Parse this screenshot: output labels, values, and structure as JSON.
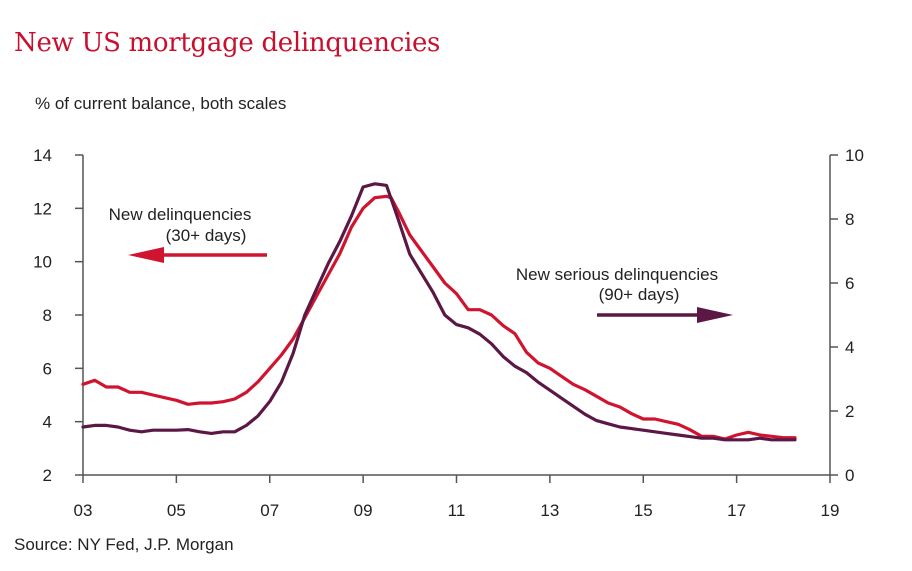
{
  "title": "New US mortgage delinquencies",
  "subtitle": "% of current balance, both scales",
  "source": "Source: NY Fed, J.P. Morgan",
  "colors": {
    "title": "#c8102e",
    "series_red": "#d0142f",
    "series_purple": "#5b1845",
    "axis": "#555555"
  },
  "chart_data": {
    "type": "line",
    "title": "New US mortgage delinquencies",
    "subtitle": "% of current balance, both scales",
    "xlabel": "",
    "x_ticks": [
      "03",
      "05",
      "07",
      "09",
      "11",
      "13",
      "15",
      "17",
      "19"
    ],
    "xlim": [
      2003,
      2019
    ],
    "left_axis": {
      "ylim": [
        2,
        14
      ],
      "ticks": [
        "2",
        "4",
        "6",
        "8",
        "10",
        "12",
        "14"
      ]
    },
    "right_axis": {
      "ylim": [
        0,
        10
      ],
      "ticks": [
        "0",
        "2",
        "4",
        "6",
        "8",
        "10"
      ]
    },
    "grid": false,
    "annotations": [
      {
        "lines": [
          "New delinquencies",
          "(30+ days)"
        ],
        "arrow": "left",
        "series": "30"
      },
      {
        "lines": [
          "New serious delinquencies",
          "(90+ days)"
        ],
        "arrow": "right",
        "series": "90"
      }
    ],
    "series": [
      {
        "id": "30",
        "axis": "left",
        "color": "#d0142f",
        "x": [
          2003.0,
          2003.25,
          2003.5,
          2003.75,
          2004.0,
          2004.25,
          2004.5,
          2004.75,
          2005.0,
          2005.25,
          2005.5,
          2005.75,
          2006.0,
          2006.25,
          2006.5,
          2006.75,
          2007.0,
          2007.25,
          2007.5,
          2007.75,
          2008.0,
          2008.25,
          2008.5,
          2008.75,
          2009.0,
          2009.25,
          2009.5,
          2009.6,
          2009.75,
          2010.0,
          2010.25,
          2010.5,
          2010.75,
          2011.0,
          2011.25,
          2011.5,
          2011.75,
          2012.0,
          2012.25,
          2012.5,
          2012.75,
          2013.0,
          2013.25,
          2013.5,
          2013.75,
          2014.0,
          2014.25,
          2014.5,
          2014.75,
          2015.0,
          2015.25,
          2015.5,
          2015.75,
          2016.0,
          2016.25,
          2016.5,
          2016.75,
          2017.0,
          2017.25,
          2017.5,
          2017.75,
          2018.0,
          2018.25
        ],
        "values": [
          5.4,
          5.55,
          5.3,
          5.3,
          5.1,
          5.1,
          5.0,
          4.9,
          4.8,
          4.65,
          4.7,
          4.7,
          4.75,
          4.85,
          5.1,
          5.5,
          6.0,
          6.5,
          7.1,
          7.9,
          8.7,
          9.5,
          10.3,
          11.3,
          12.0,
          12.4,
          12.45,
          12.4,
          11.9,
          11.0,
          10.4,
          9.8,
          9.2,
          8.8,
          8.2,
          8.2,
          8.0,
          7.6,
          7.3,
          6.6,
          6.2,
          6.0,
          5.7,
          5.4,
          5.2,
          4.95,
          4.7,
          4.55,
          4.3,
          4.1,
          4.1,
          4.0,
          3.9,
          3.7,
          3.45,
          3.45,
          3.35,
          3.5,
          3.6,
          3.5,
          3.45,
          3.4,
          3.4
        ]
      },
      {
        "id": "90",
        "axis": "right",
        "color": "#5b1845",
        "x": [
          2003.0,
          2003.25,
          2003.5,
          2003.75,
          2004.0,
          2004.25,
          2004.5,
          2004.75,
          2005.0,
          2005.25,
          2005.5,
          2005.75,
          2006.0,
          2006.25,
          2006.5,
          2006.75,
          2007.0,
          2007.25,
          2007.5,
          2007.75,
          2008.0,
          2008.25,
          2008.5,
          2008.75,
          2009.0,
          2009.25,
          2009.5,
          2009.75,
          2010.0,
          2010.25,
          2010.5,
          2010.75,
          2011.0,
          2011.25,
          2011.5,
          2011.75,
          2012.0,
          2012.25,
          2012.5,
          2012.75,
          2013.0,
          2013.25,
          2013.5,
          2013.75,
          2014.0,
          2014.25,
          2014.5,
          2014.75,
          2015.0,
          2015.25,
          2015.5,
          2015.75,
          2016.0,
          2016.25,
          2016.5,
          2016.75,
          2017.0,
          2017.25,
          2017.5,
          2017.75,
          2018.0,
          2018.25
        ],
        "values": [
          1.5,
          1.55,
          1.55,
          1.5,
          1.4,
          1.35,
          1.4,
          1.4,
          1.4,
          1.42,
          1.35,
          1.3,
          1.35,
          1.35,
          1.55,
          1.85,
          2.3,
          2.9,
          3.8,
          5.0,
          5.8,
          6.6,
          7.3,
          8.1,
          9.0,
          9.1,
          9.05,
          8.0,
          6.9,
          6.3,
          5.7,
          5.0,
          4.7,
          4.6,
          4.4,
          4.1,
          3.7,
          3.4,
          3.2,
          2.9,
          2.65,
          2.4,
          2.15,
          1.9,
          1.7,
          1.6,
          1.5,
          1.45,
          1.4,
          1.35,
          1.3,
          1.25,
          1.2,
          1.15,
          1.15,
          1.1,
          1.1,
          1.1,
          1.15,
          1.1,
          1.1,
          1.1
        ]
      }
    ]
  }
}
